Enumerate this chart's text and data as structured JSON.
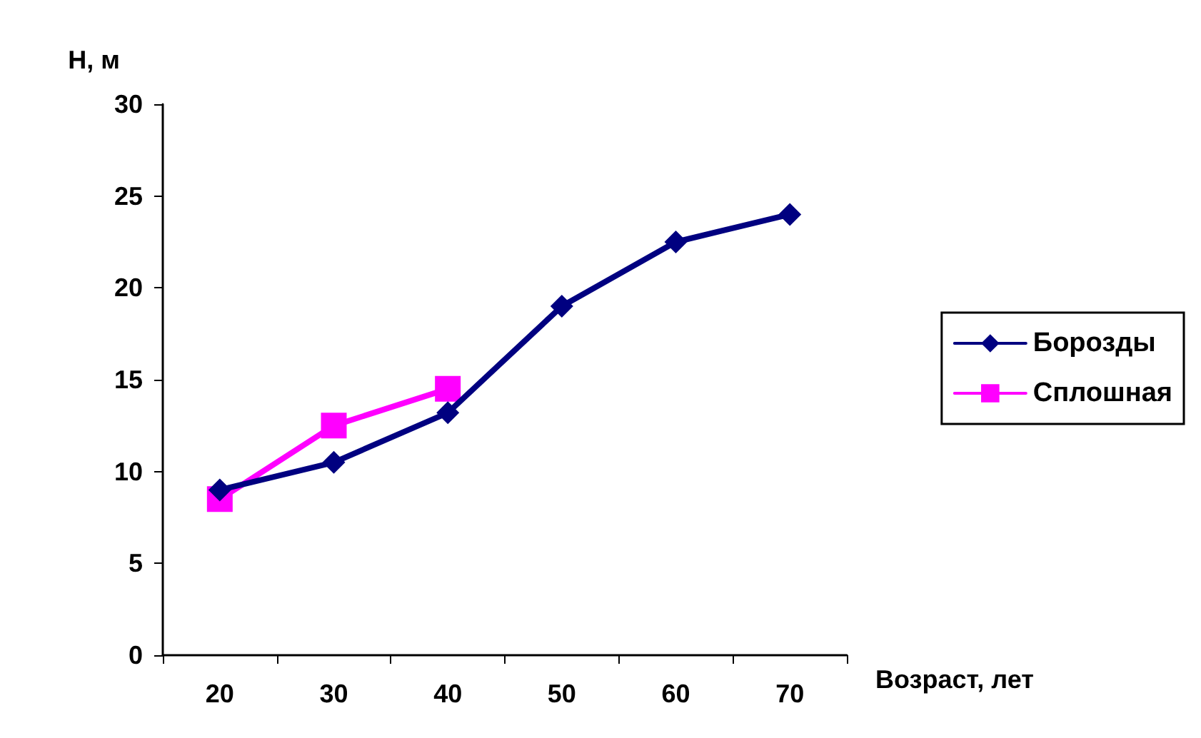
{
  "chart_data": {
    "type": "line",
    "xlabel": "Возраст, лет",
    "ylabel": "Н, м",
    "categories": [
      "20",
      "30",
      "40",
      "50",
      "60",
      "70"
    ],
    "series": [
      {
        "name": "Борозды",
        "color": "#000080",
        "marker": "diamond",
        "values": [
          9,
          10.5,
          13.2,
          19,
          22.5,
          24
        ]
      },
      {
        "name": "Сплошная",
        "color": "#ff00ff",
        "marker": "square",
        "values": [
          8.5,
          12.5,
          14.5,
          null,
          null,
          null
        ]
      }
    ],
    "ylim": [
      0,
      30
    ],
    "yticks": [
      0,
      5,
      10,
      15,
      20,
      25,
      30
    ],
    "grid": false,
    "legend": "right",
    "line_style": "solid"
  }
}
